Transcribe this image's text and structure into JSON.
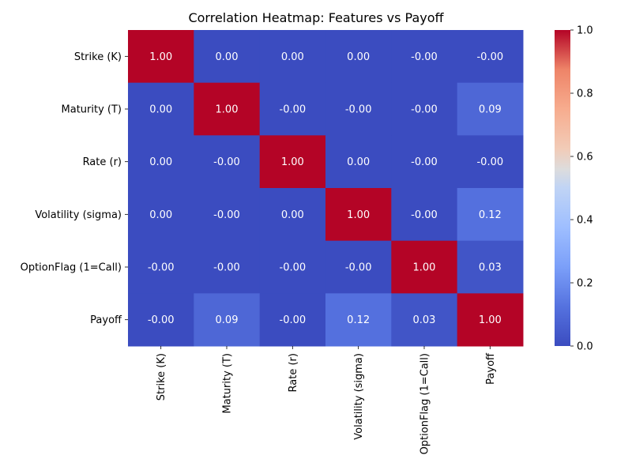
{
  "chart_data": {
    "type": "heatmap",
    "title": "Correlation Heatmap: Features vs Payoff",
    "xlabel": "",
    "ylabel": "",
    "labels": [
      "Strike (K)",
      "Maturity (T)",
      "Rate (r)",
      "Volatility (sigma)",
      "OptionFlag (1=Call)",
      "Payoff"
    ],
    "cell_labels": [
      [
        "1.00",
        "0.00",
        "0.00",
        "0.00",
        "-0.00",
        "-0.00"
      ],
      [
        "0.00",
        "1.00",
        "-0.00",
        "-0.00",
        "-0.00",
        "0.09"
      ],
      [
        "0.00",
        "-0.00",
        "1.00",
        "0.00",
        "-0.00",
        "-0.00"
      ],
      [
        "0.00",
        "-0.00",
        "0.00",
        "1.00",
        "-0.00",
        "0.12"
      ],
      [
        "-0.00",
        "-0.00",
        "-0.00",
        "-0.00",
        "1.00",
        "0.03"
      ],
      [
        "-0.00",
        "0.09",
        "-0.00",
        "0.12",
        "0.03",
        "1.00"
      ]
    ],
    "values": [
      [
        1.0,
        0.0,
        0.0,
        0.0,
        0.0,
        0.0
      ],
      [
        0.0,
        1.0,
        0.0,
        0.0,
        0.0,
        0.09
      ],
      [
        0.0,
        0.0,
        1.0,
        0.0,
        0.0,
        0.0
      ],
      [
        0.0,
        0.0,
        0.0,
        1.0,
        0.0,
        0.12
      ],
      [
        0.0,
        0.0,
        0.0,
        0.0,
        1.0,
        0.03
      ],
      [
        0.0,
        0.09,
        0.0,
        0.12,
        0.03,
        1.0
      ]
    ],
    "colormap": "coolwarm",
    "color_range": [
      0.0,
      1.0
    ],
    "colorbar_ticks": [
      "0.0",
      "0.2",
      "0.4",
      "0.6",
      "0.8",
      "1.0"
    ],
    "grid": false,
    "colorbar_position": "right"
  }
}
